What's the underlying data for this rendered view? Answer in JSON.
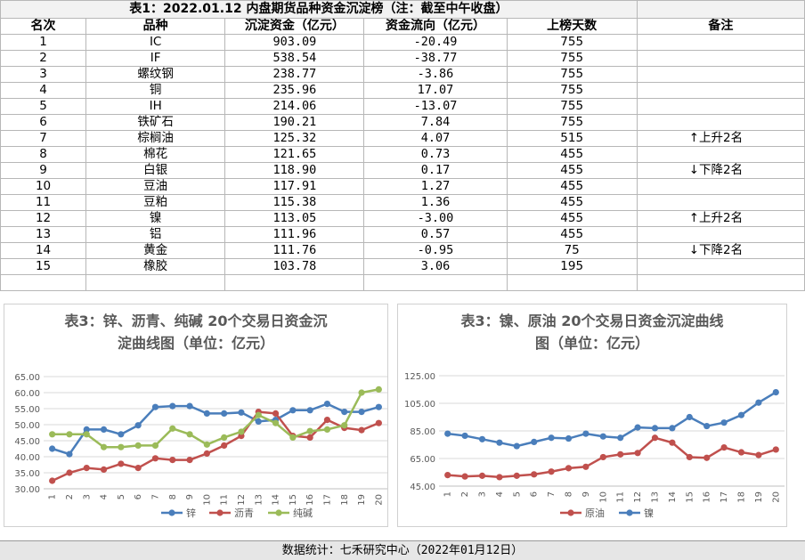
{
  "table": {
    "title": "表1：2022.01.12 内盘期货品种资金沉淀榜（注：截至中午收盘）",
    "headers": [
      "名次",
      "品种",
      "沉淀资金（亿元）",
      "资金流向（亿元）",
      "上榜天数",
      "备注"
    ],
    "rows": [
      {
        "rank": "1",
        "name": "IC",
        "fund": "903.09",
        "flow": "-20.49",
        "days": "755",
        "note": ""
      },
      {
        "rank": "2",
        "name": "IF",
        "fund": "538.54",
        "flow": "-38.77",
        "days": "755",
        "note": ""
      },
      {
        "rank": "3",
        "name": "螺纹钢",
        "fund": "238.77",
        "flow": "-3.86",
        "days": "755",
        "note": ""
      },
      {
        "rank": "4",
        "name": "铜",
        "fund": "235.96",
        "flow": "17.07",
        "days": "755",
        "note": ""
      },
      {
        "rank": "5",
        "name": "IH",
        "fund": "214.06",
        "flow": "-13.07",
        "days": "755",
        "note": ""
      },
      {
        "rank": "6",
        "name": "铁矿石",
        "fund": "190.21",
        "flow": "7.84",
        "days": "755",
        "note": ""
      },
      {
        "rank": "7",
        "name": "棕榈油",
        "fund": "125.32",
        "flow": "4.07",
        "days": "515",
        "note": "↑上升2名"
      },
      {
        "rank": "8",
        "name": "棉花",
        "fund": "121.65",
        "flow": "0.73",
        "days": "455",
        "note": ""
      },
      {
        "rank": "9",
        "name": "白银",
        "fund": "118.90",
        "flow": "0.17",
        "days": "455",
        "note": "↓下降2名"
      },
      {
        "rank": "10",
        "name": "豆油",
        "fund": "117.91",
        "flow": "1.27",
        "days": "455",
        "note": ""
      },
      {
        "rank": "11",
        "name": "豆粕",
        "fund": "115.38",
        "flow": "1.36",
        "days": "455",
        "note": ""
      },
      {
        "rank": "12",
        "name": "镍",
        "fund": "113.05",
        "flow": "-3.00",
        "days": "455",
        "note": "↑上升2名"
      },
      {
        "rank": "13",
        "name": "铝",
        "fund": "111.96",
        "flow": "0.57",
        "days": "455",
        "note": ""
      },
      {
        "rank": "14",
        "name": "黄金",
        "fund": "111.76",
        "flow": "-0.95",
        "days": "75",
        "note": "↓下降2名"
      },
      {
        "rank": "15",
        "name": "橡胶",
        "fund": "103.78",
        "flow": "3.06",
        "days": "195",
        "note": ""
      }
    ]
  },
  "chart_data": [
    {
      "type": "line",
      "title": "表3：锌、沥青、纯碱 20个交易日资金沉淀曲线图（单位：亿元）",
      "title_lines": [
        "表3：锌、沥青、纯碱 20个交易日资金沉",
        "淀曲线图（单位：亿元）"
      ],
      "x": [
        "1",
        "2",
        "3",
        "4",
        "5",
        "6",
        "7",
        "8",
        "9",
        "10",
        "11",
        "12",
        "13",
        "14",
        "15",
        "16",
        "17",
        "18",
        "19",
        "20"
      ],
      "ylim": [
        30,
        65
      ],
      "yticks": [
        "30.00",
        "35.00",
        "40.00",
        "45.00",
        "50.00",
        "55.00",
        "60.00",
        "65.00"
      ],
      "grid": true,
      "legend": "bottom",
      "series": [
        {
          "name": "锌",
          "color": "#4a7ebb",
          "values": [
            42.5,
            40.8,
            48.5,
            48.5,
            47,
            49.8,
            55.5,
            55.8,
            55.8,
            53.5,
            53.5,
            53.8,
            51,
            51.5,
            54.5,
            54.5,
            56.5,
            54,
            54,
            55.5
          ]
        },
        {
          "name": "沥青",
          "color": "#c0504d",
          "values": [
            32.5,
            35,
            36.5,
            36,
            37.8,
            36.5,
            39.5,
            39,
            39,
            41,
            43.5,
            46.5,
            54,
            53.5,
            46.5,
            46,
            51.5,
            49,
            48.3,
            50.5
          ]
        },
        {
          "name": "纯碱",
          "color": "#9bbb59",
          "values": [
            47,
            47,
            47,
            43,
            43,
            43.5,
            43.5,
            48.8,
            47,
            43.8,
            46,
            47.8,
            53,
            50.5,
            46,
            48,
            48.5,
            49.8,
            60,
            61
          ]
        }
      ]
    },
    {
      "type": "line",
      "title": "表3：镍、原油 20个交易日资金沉淀曲线图（单位：亿元）",
      "title_lines": [
        "表3：镍、原油 20个交易日资金沉淀曲线",
        "图（单位：亿元）"
      ],
      "x": [
        "1",
        "2",
        "3",
        "4",
        "5",
        "6",
        "7",
        "8",
        "9",
        "10",
        "11",
        "12",
        "13",
        "14",
        "15",
        "16",
        "17",
        "18",
        "19",
        "20"
      ],
      "ylim": [
        45,
        125
      ],
      "yticks": [
        "45.00",
        "65.00",
        "85.00",
        "105.00",
        "125.00"
      ],
      "grid": true,
      "legend": "bottom",
      "series": [
        {
          "name": "原油",
          "color": "#c0504d",
          "values": [
            53,
            52,
            52.5,
            51.5,
            52.5,
            53.5,
            55.5,
            58,
            59,
            66,
            68,
            69,
            80,
            76.5,
            66,
            65.5,
            73,
            69.5,
            67.5,
            71.5
          ]
        },
        {
          "name": "镍",
          "color": "#4a7ebb",
          "values": [
            83,
            81.5,
            79,
            76.5,
            74,
            77,
            80,
            79.5,
            83,
            81,
            80,
            87.5,
            87,
            87,
            95,
            88.5,
            91,
            96.5,
            105.5,
            113
          ]
        }
      ]
    }
  ],
  "footer": "数据统计：七禾研究中心（2022年01月12日）"
}
